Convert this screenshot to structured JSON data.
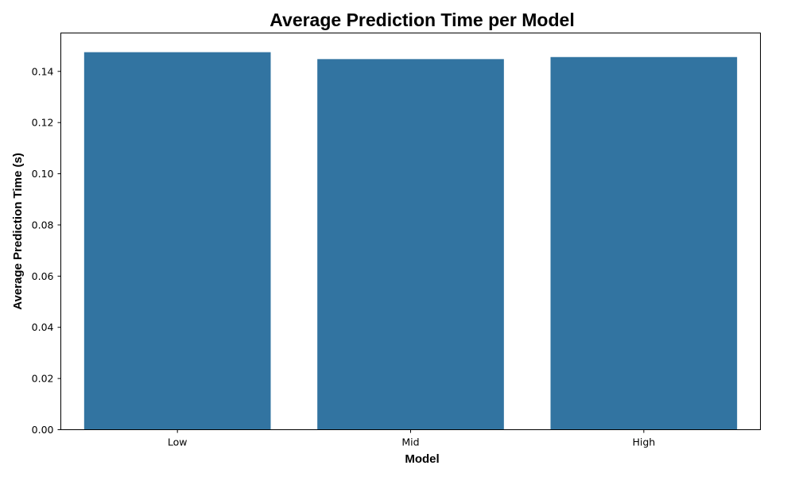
{
  "chart_data": {
    "type": "bar",
    "title": "Average Prediction Time per Model",
    "xlabel": "Model",
    "ylabel": "Average Prediction Time (s)",
    "categories": [
      "Low",
      "Mid",
      "High"
    ],
    "values": [
      0.1475,
      0.1448,
      0.1456
    ],
    "ylim": [
      0,
      0.155
    ],
    "yticks": [
      "0.00",
      "0.02",
      "0.04",
      "0.06",
      "0.08",
      "0.10",
      "0.12",
      "0.14"
    ],
    "grid": false,
    "bar_color": "#3274a1"
  }
}
